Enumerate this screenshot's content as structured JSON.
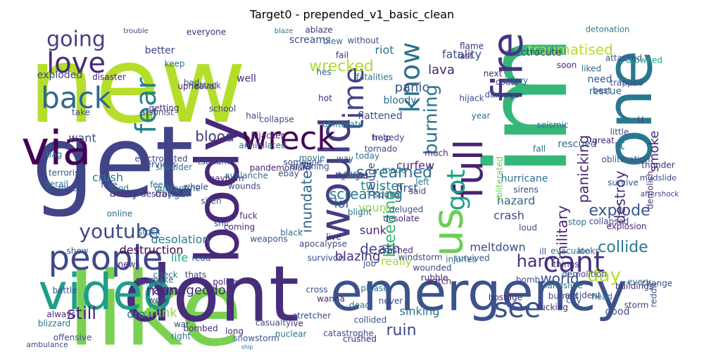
{
  "chart_data": {
    "type": "wordcloud",
    "title": "Target0 - prepended_v1_basic_clean",
    "words": [
      {
        "text": "new",
        "color": "#b5de2b"
      },
      {
        "text": "like",
        "color": "#7ad151"
      },
      {
        "text": "im",
        "color": "#35b779"
      },
      {
        "text": "get",
        "color": "#414487"
      },
      {
        "text": "dont",
        "color": "#472d7b"
      },
      {
        "text": "via",
        "color": "#440154"
      },
      {
        "text": "emergency",
        "color": "#3b528b"
      },
      {
        "text": "body",
        "color": "#482878"
      },
      {
        "text": "one",
        "color": "#2a788e"
      },
      {
        "text": "fire",
        "color": "#46337e"
      },
      {
        "text": "video",
        "color": "#1f9e89"
      },
      {
        "text": "us",
        "color": "#6ece58"
      },
      {
        "text": "would",
        "color": "#433e85"
      },
      {
        "text": "wreck",
        "color": "#440154"
      },
      {
        "text": "people",
        "color": "#3e4989"
      },
      {
        "text": "full",
        "color": "#482173"
      },
      {
        "text": "back",
        "color": "#31688e"
      },
      {
        "text": "fear",
        "color": "#26828e"
      },
      {
        "text": "love",
        "color": "#472a7a"
      },
      {
        "text": "time",
        "color": "#414487"
      },
      {
        "text": "know",
        "color": "#2d708e"
      },
      {
        "text": "got",
        "color": "#1fa188"
      },
      {
        "text": "going",
        "color": "#433e85"
      },
      {
        "text": "see",
        "color": "#3b528b"
      },
      {
        "text": "cant",
        "color": "#46337e"
      },
      {
        "text": "youtube",
        "color": "#3e4a89"
      },
      {
        "text": "wrecked",
        "color": "#addc30"
      },
      {
        "text": "blood",
        "color": "#453781"
      },
      {
        "text": "still",
        "color": "#482475"
      },
      {
        "text": "armageddon",
        "color": "#482878"
      },
      {
        "text": "burning",
        "color": "#2c728e"
      },
      {
        "text": "ruin",
        "color": "#414487"
      },
      {
        "text": "day",
        "color": "#b5de2b"
      },
      {
        "text": "harm",
        "color": "#472d7b"
      },
      {
        "text": "death",
        "color": "#3e4989"
      },
      {
        "text": "explode",
        "color": "#39568c"
      },
      {
        "text": "collide",
        "color": "#2a788e"
      },
      {
        "text": "destroy",
        "color": "#472d7b"
      },
      {
        "text": "inundated",
        "color": "#31688e"
      },
      {
        "text": "traumatised",
        "color": "#b5de2b"
      },
      {
        "text": "screamed",
        "color": "#2c728e"
      },
      {
        "text": "screaming",
        "color": "#2a788e"
      },
      {
        "text": "bleeding",
        "color": "#35b779"
      },
      {
        "text": "panicking",
        "color": "#482475"
      },
      {
        "text": "military",
        "color": "#481f70"
      },
      {
        "text": "world",
        "color": "#3b528b"
      },
      {
        "text": "twister",
        "color": "#23898e"
      },
      {
        "text": "curfew",
        "color": "#472d7b"
      },
      {
        "text": "panic",
        "color": "#3b528b"
      },
      {
        "text": "lava",
        "color": "#482475"
      },
      {
        "text": "smoke",
        "color": "#482878"
      },
      {
        "text": "bloody",
        "color": "#2d708e"
      },
      {
        "text": "flattened",
        "color": "#3b528b"
      },
      {
        "text": "crush",
        "color": "#287c8e"
      },
      {
        "text": "drown",
        "color": "#2a788e"
      },
      {
        "text": "army",
        "color": "#46337e"
      },
      {
        "text": "sunk",
        "color": "#482475"
      },
      {
        "text": "youre",
        "color": "#8fd744"
      },
      {
        "text": "lol",
        "color": "#33638d"
      },
      {
        "text": "first",
        "color": "#3e4989"
      },
      {
        "text": "deluge",
        "color": "#3b528b"
      },
      {
        "text": "blazing",
        "color": "#472d7b"
      },
      {
        "text": "meltdown",
        "color": "#3e4a89"
      },
      {
        "text": "really",
        "color": "#a0da39"
      },
      {
        "text": "desolation",
        "color": "#2a788e"
      },
      {
        "text": "destruction",
        "color": "#440154"
      },
      {
        "text": "man",
        "color": "#482878"
      },
      {
        "text": "life",
        "color": "#20a486"
      },
      {
        "text": "think",
        "color": "#8fd744"
      },
      {
        "text": "sinking",
        "color": "#2c728e"
      },
      {
        "text": "good",
        "color": "#3b528b"
      },
      {
        "text": "crash",
        "color": "#3e4989"
      },
      {
        "text": "hazard",
        "color": "#31688e"
      },
      {
        "text": "danger",
        "color": "#2d708e"
      },
      {
        "text": "want",
        "color": "#3e4989"
      },
      {
        "text": "rt",
        "color": "#2a788e"
      },
      {
        "text": "u",
        "color": "#3e4989"
      },
      {
        "text": "obliterated",
        "color": "#6ece58"
      },
      {
        "text": "survive",
        "color": "#3b528b"
      },
      {
        "text": "demolish",
        "color": "#46337e"
      },
      {
        "text": "mudslide",
        "color": "#3e4989"
      },
      {
        "text": "hurricane",
        "color": "#2d708e"
      },
      {
        "text": "obliteration",
        "color": "#3b528b"
      },
      {
        "text": "thunder",
        "color": "#482878"
      },
      {
        "text": "aftershock",
        "color": "#414487"
      },
      {
        "text": "sirens",
        "color": "#3e4989"
      },
      {
        "text": "rescued",
        "color": "#31688e"
      },
      {
        "text": "fall",
        "color": "#2a788e"
      },
      {
        "text": "little",
        "color": "#3e4989"
      },
      {
        "text": "rescue",
        "color": "#2d708e"
      },
      {
        "text": "need",
        "color": "#3b528b"
      },
      {
        "text": "liked",
        "color": "#31688e"
      },
      {
        "text": "drowned",
        "color": "#20a486"
      },
      {
        "text": "detonation",
        "color": "#2a788e"
      },
      {
        "text": "fatality",
        "color": "#3b528b"
      },
      {
        "text": "electrocute",
        "color": "#3e4989"
      },
      {
        "text": "last",
        "color": "#482878"
      },
      {
        "text": "riot",
        "color": "#2a788e"
      },
      {
        "text": "screams",
        "color": "#3e4989"
      },
      {
        "text": "ablaze",
        "color": "#472d7b"
      },
      {
        "text": "blaze",
        "color": "#2d708e"
      },
      {
        "text": "everyone",
        "color": "#482878"
      },
      {
        "text": "trouble",
        "color": "#3e4989"
      },
      {
        "text": "better",
        "color": "#414487"
      },
      {
        "text": "well",
        "color": "#482878"
      },
      {
        "text": "exploded",
        "color": "#414487"
      },
      {
        "text": "disaster",
        "color": "#482475"
      },
      {
        "text": "take",
        "color": "#3e4989"
      },
      {
        "text": "bag",
        "color": "#2d708e"
      },
      {
        "text": "arsonist",
        "color": "#3e4989"
      },
      {
        "text": "upheaval",
        "color": "#482475"
      },
      {
        "text": "attack",
        "color": "#3b528b"
      },
      {
        "text": "school",
        "color": "#414487"
      },
      {
        "text": "hail",
        "color": "#3e4989"
      },
      {
        "text": "hot",
        "color": "#482878"
      },
      {
        "text": "fatalities",
        "color": "#2d708e"
      },
      {
        "text": "hijack",
        "color": "#3e4989"
      },
      {
        "text": "injury",
        "color": "#31688e"
      },
      {
        "text": "best",
        "color": "#3b528b"
      },
      {
        "text": "next",
        "color": "#482878"
      },
      {
        "text": "could",
        "color": "#3e4989"
      },
      {
        "text": "year",
        "color": "#2d708e"
      },
      {
        "text": "damage",
        "color": "#3b528b"
      },
      {
        "text": "trapped",
        "color": "#3e4989"
      },
      {
        "text": "soon",
        "color": "#482878"
      },
      {
        "text": "free",
        "color": "#3b528b"
      },
      {
        "text": "flood",
        "color": "#2d708e"
      },
      {
        "text": "quarantine",
        "color": "#2a788e"
      },
      {
        "text": "tsunami",
        "color": "#3e4989"
      },
      {
        "text": "mayhem",
        "color": "#482878"
      },
      {
        "text": "avalanche",
        "color": "#2d708e"
      },
      {
        "text": "wounds",
        "color": "#3e4989"
      },
      {
        "text": "pandemonium",
        "color": "#482475"
      },
      {
        "text": "drowning",
        "color": "#3b528b"
      },
      {
        "text": "obliterate",
        "color": "#2a788e"
      },
      {
        "text": "annihilated",
        "color": "#31688e"
      },
      {
        "text": "collapse",
        "color": "#3e4989"
      },
      {
        "text": "hijacker",
        "color": "#482878"
      },
      {
        "text": "derail",
        "color": "#2d708e"
      },
      {
        "text": "services",
        "color": "#3e4989"
      },
      {
        "text": "electrocuted",
        "color": "#414487"
      },
      {
        "text": "shoulder",
        "color": "#2d708e"
      },
      {
        "text": "siren",
        "color": "#3b528b"
      },
      {
        "text": "fuck",
        "color": "#482878"
      },
      {
        "text": "shit",
        "color": "#3e4989"
      },
      {
        "text": "stock",
        "color": "#2d708e"
      },
      {
        "text": "show",
        "color": "#3b528b"
      },
      {
        "text": "news",
        "color": "#482878"
      },
      {
        "text": "check",
        "color": "#2d708e"
      },
      {
        "text": "thats",
        "color": "#3e4989"
      },
      {
        "text": "police",
        "color": "#482878"
      },
      {
        "text": "flames",
        "color": "#3e4989"
      },
      {
        "text": "battle",
        "color": "#3b528b"
      },
      {
        "text": "make",
        "color": "#2d708e"
      },
      {
        "text": "work",
        "color": "#3e4989"
      },
      {
        "text": "always",
        "color": "#482878"
      },
      {
        "text": "blizzard",
        "color": "#2d708e"
      },
      {
        "text": "offensive",
        "color": "#3b528b"
      },
      {
        "text": "ambulance",
        "color": "#3e4989"
      },
      {
        "text": "bombed",
        "color": "#482878"
      },
      {
        "text": "right",
        "color": "#2d708e"
      },
      {
        "text": "war",
        "color": "#3e4989"
      },
      {
        "text": "long",
        "color": "#482878"
      },
      {
        "text": "ship",
        "color": "#2d708e"
      },
      {
        "text": "snowstorm",
        "color": "#3b528b"
      },
      {
        "text": "casualty",
        "color": "#3e4989"
      },
      {
        "text": "ive",
        "color": "#482878"
      },
      {
        "text": "nuclear",
        "color": "#2d708e"
      },
      {
        "text": "stretcher",
        "color": "#3e4989"
      },
      {
        "text": "cross",
        "color": "#3b528b"
      },
      {
        "text": "wanna",
        "color": "#482878"
      },
      {
        "text": "dead",
        "color": "#2d708e"
      },
      {
        "text": "catastrophe",
        "color": "#3e4989"
      },
      {
        "text": "crushed",
        "color": "#482878"
      },
      {
        "text": "collided",
        "color": "#3b528b"
      },
      {
        "text": "please",
        "color": "#2d708e"
      },
      {
        "text": "never",
        "color": "#3e4989"
      },
      {
        "text": "watch",
        "color": "#482878"
      },
      {
        "text": "survived",
        "color": "#3b528b"
      },
      {
        "text": "injuries",
        "color": "#2d708e"
      },
      {
        "text": "windstorm",
        "color": "#3e4989"
      },
      {
        "text": "rubble",
        "color": "#482878"
      },
      {
        "text": "bomb",
        "color": "#3b528b"
      },
      {
        "text": "landslide",
        "color": "#2d708e"
      },
      {
        "text": "burned",
        "color": "#3e4989"
      },
      {
        "text": "hostage",
        "color": "#482878"
      },
      {
        "text": "loud",
        "color": "#3b528b"
      },
      {
        "text": "stop",
        "color": "#2d708e"
      },
      {
        "text": "collapsed",
        "color": "#3e4989"
      },
      {
        "text": "explosion",
        "color": "#482878"
      },
      {
        "text": "looks",
        "color": "#3b528b"
      },
      {
        "text": "evacuate",
        "color": "#2d708e"
      },
      {
        "text": "demolition",
        "color": "#3e4989"
      },
      {
        "text": "things",
        "color": "#482878"
      },
      {
        "text": "ill",
        "color": "#3b528b"
      },
      {
        "text": "made",
        "color": "#2d708e"
      },
      {
        "text": "said",
        "color": "#3e4989"
      },
      {
        "text": "desolate",
        "color": "#482878"
      },
      {
        "text": "deluged",
        "color": "#3b528b"
      },
      {
        "text": "blight",
        "color": "#2d708e"
      },
      {
        "text": "apocalypse",
        "color": "#3e4989"
      },
      {
        "text": "live",
        "color": "#482878"
      },
      {
        "text": "way",
        "color": "#3b528b"
      },
      {
        "text": "today",
        "color": "#2d708e"
      },
      {
        "text": "tornado",
        "color": "#3e4989"
      },
      {
        "text": "help",
        "color": "#482878"
      },
      {
        "text": "ebay",
        "color": "#3b528b"
      },
      {
        "text": "movie",
        "color": "#2d708e"
      },
      {
        "text": "someone",
        "color": "#3e4989"
      },
      {
        "text": "getting",
        "color": "#482878"
      },
      {
        "text": "bad",
        "color": "#3b528b"
      },
      {
        "text": "keep",
        "color": "#2d708e"
      },
      {
        "text": "storm",
        "color": "#3e4989"
      },
      {
        "text": "fucking",
        "color": "#482878"
      },
      {
        "text": "city",
        "color": "#3b528b"
      },
      {
        "text": "head",
        "color": "#2d708e"
      },
      {
        "text": "accident",
        "color": "#3e4989"
      },
      {
        "text": "buildings",
        "color": "#482878"
      },
      {
        "text": "reddit",
        "color": "#3b528b"
      },
      {
        "text": "every",
        "color": "#2d708e"
      },
      {
        "text": "change",
        "color": "#3e4989"
      },
      {
        "text": "great",
        "color": "#482878"
      },
      {
        "text": "attacked",
        "color": "#3b528b"
      },
      {
        "text": "seismic",
        "color": "#2d708e"
      },
      {
        "text": "tragedy",
        "color": "#3e4989"
      },
      {
        "text": "fail",
        "color": "#482878"
      },
      {
        "text": "hes",
        "color": "#3b528b"
      },
      {
        "text": "blew",
        "color": "#2d708e"
      },
      {
        "text": "without",
        "color": "#3e4989"
      },
      {
        "text": "flame",
        "color": "#482878"
      },
      {
        "text": "zone",
        "color": "#3b528b"
      },
      {
        "text": "online",
        "color": "#2d708e"
      },
      {
        "text": "whole",
        "color": "#3e4989"
      },
      {
        "text": "coming",
        "color": "#482878"
      },
      {
        "text": "weapons",
        "color": "#3b528b"
      },
      {
        "text": "black",
        "color": "#2d708e"
      },
      {
        "text": "survivors",
        "color": "#3e4989"
      },
      {
        "text": "destroyed",
        "color": "#482878"
      },
      {
        "text": "read",
        "color": "#3b528b"
      },
      {
        "text": "feel",
        "color": "#2d708e"
      },
      {
        "text": "sound",
        "color": "#3e4989"
      },
      {
        "text": "crashed",
        "color": "#482878"
      },
      {
        "text": "job",
        "color": "#3b528b"
      },
      {
        "text": "left",
        "color": "#2d708e"
      },
      {
        "text": "wounded",
        "color": "#3e4989"
      },
      {
        "text": "much",
        "color": "#482878"
      },
      {
        "text": "terrorist",
        "color": "#3b528b"
      },
      {
        "text": "face",
        "color": "#2d708e"
      },
      {
        "text": "hellfire",
        "color": "#3e4989"
      },
      {
        "text": "thought",
        "color": "#482878"
      },
      {
        "text": "post",
        "color": "#3b528b"
      },
      {
        "text": "fan",
        "color": "#2d708e"
      },
      {
        "text": "cyclone",
        "color": "#3e4989"
      }
    ]
  }
}
